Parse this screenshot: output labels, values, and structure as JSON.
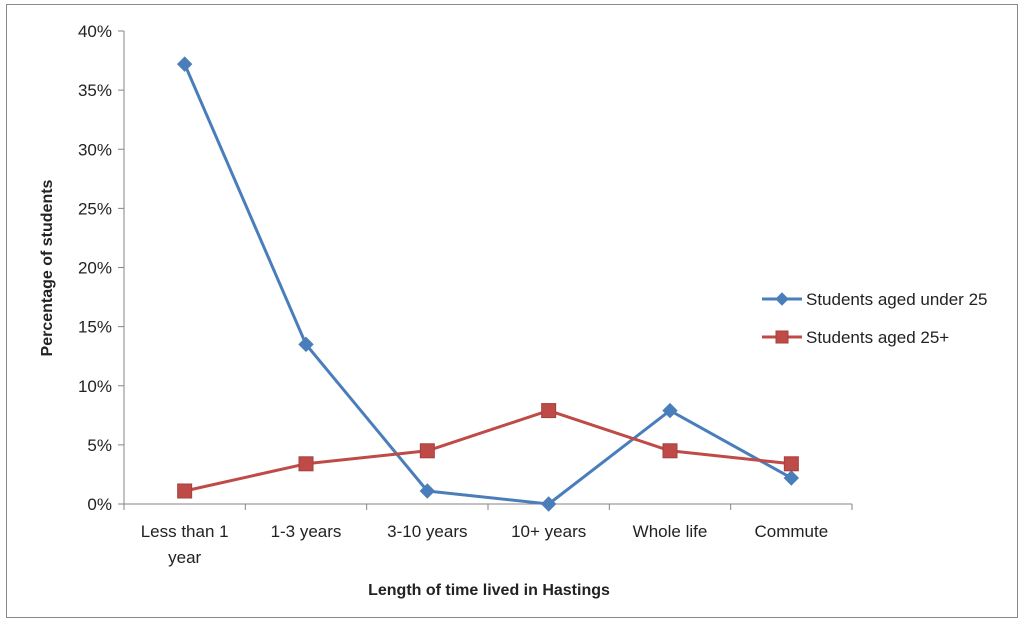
{
  "chart_data": {
    "type": "line",
    "xlabel": "Length of time lived in Hastings",
    "ylabel": "Percentage of students",
    "categories": [
      [
        "Less than 1",
        "year"
      ],
      [
        "1-3 years"
      ],
      [
        "3-10 years"
      ],
      [
        "10+ years"
      ],
      [
        "Whole life"
      ],
      [
        "Commute"
      ]
    ],
    "ylim": [
      0,
      40
    ],
    "yticks": [
      0,
      5,
      10,
      15,
      20,
      25,
      30,
      35,
      40
    ],
    "ytick_labels": [
      "0%",
      "5%",
      "10%",
      "15%",
      "20%",
      "25%",
      "30%",
      "35%",
      "40%"
    ],
    "grid": false,
    "legend_position": "right",
    "series": [
      {
        "name": "Students aged under 25",
        "values": [
          37.2,
          13.5,
          1.1,
          0.0,
          7.9,
          2.2
        ],
        "color": "#4a7ebb",
        "marker": "diamond"
      },
      {
        "name": "Students aged 25+",
        "values": [
          1.1,
          3.4,
          4.5,
          7.9,
          4.5,
          3.4
        ],
        "color": "#be4b48",
        "marker": "square"
      }
    ]
  }
}
